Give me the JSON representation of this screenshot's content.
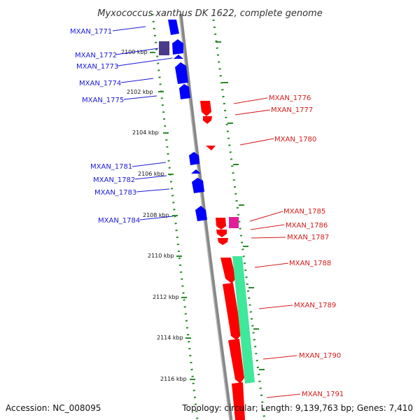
{
  "title": "Myxococcus xanthus DK 1622, complete genome",
  "accession": "Accession: NC_008095",
  "topology": "Topology: circular; Length: 9,139,763 bp; Genes: 7,410",
  "colors": {
    "forward_gene": "#0000ff",
    "reverse_gene": "#ff0000",
    "forward_label": "#1a1ad6",
    "reverse_label": "#d61a1a",
    "grid_dots": "#2a8a2a",
    "backbone": "#888888",
    "special_forward": "#4a3a8a",
    "special_reverse": "#e0209a",
    "rna_teal": "#3fe89a"
  },
  "ticks": [
    "2100 kbp",
    "2102 kbp",
    "2104 kbp",
    "2106 kbp",
    "2108 kbp",
    "2110 kbp",
    "2112 kbp",
    "2114 kbp",
    "2116 kbp"
  ],
  "left_genes": [
    "MXAN_1771",
    "MXAN_1772",
    "MXAN_1773",
    "MXAN_1774",
    "MXAN_1775",
    "MXAN_1781",
    "MXAN_1782",
    "MXAN_1783",
    "MXAN_1784"
  ],
  "right_genes": [
    "MXAN_1776",
    "MXAN_1777",
    "MXAN_1780",
    "MXAN_1785",
    "MXAN_1786",
    "MXAN_1787",
    "MXAN_1788",
    "MXAN_1789",
    "MXAN_1790",
    "MXAN_1791"
  ]
}
